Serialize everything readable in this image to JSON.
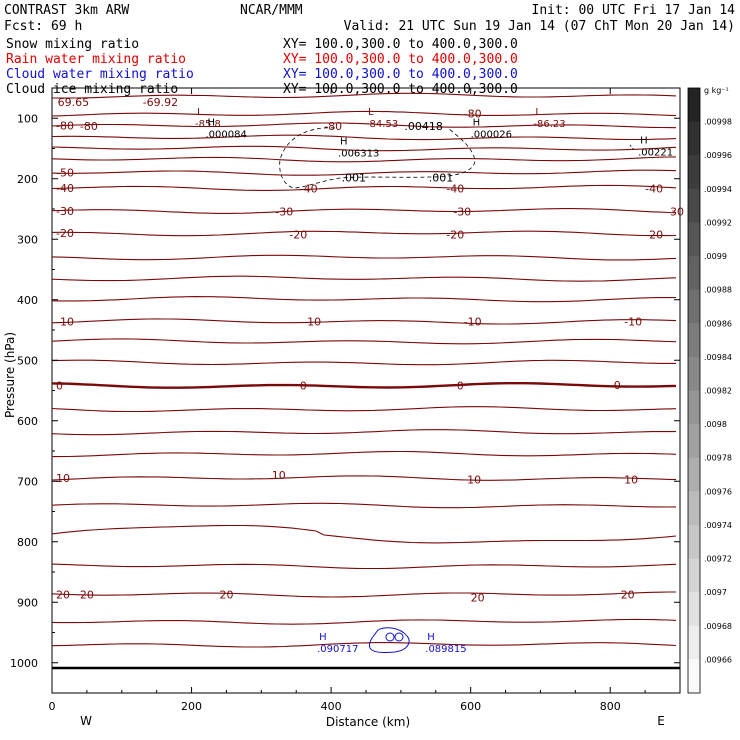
{
  "header": {
    "title_left": "CONTRAST  3km ARW",
    "title_center": "NCAR/MMM",
    "init": "Init: 00 UTC Fri 17 Jan 14",
    "fcst": "Fcst:   69 h",
    "valid": "Valid: 21 UTC Sun 19 Jan 14 (07 ChT Mon 20 Jan 14)"
  },
  "fields": [
    {
      "name": "Snow mixing ratio",
      "xy": "XY= 100.0,300.0 to 400.0,300.0",
      "color": "#000000"
    },
    {
      "name": "Rain water mixing ratio",
      "xy": "XY= 100.0,300.0 to 400.0,300.0",
      "color": "#e00000"
    },
    {
      "name": "Cloud water mixing ratio",
      "xy": "XY= 100.0,300.0 to 400.0,300.0",
      "color": "#1010d0"
    },
    {
      "name": "Cloud ice mixing ratio",
      "xy": "XY= 100.0,300.0 to 400.0,300.0",
      "color": "#000000"
    }
  ],
  "chart_data": {
    "type": "contour",
    "xlabel": "Distance (km)",
    "ylabel": "Pressure (hPa)",
    "xlim": [
      0,
      900
    ],
    "ylim": [
      1050,
      50
    ],
    "xticks": [
      0,
      200,
      400,
      600,
      800
    ],
    "yticks": [
      100,
      200,
      300,
      400,
      500,
      600,
      700,
      800,
      900,
      1000
    ],
    "west_label": "W",
    "east_label": "E",
    "contour_color": "#7a0a0a",
    "isotherms": [
      {
        "p": 63,
        "label": ""
      },
      {
        "p": 93,
        "label": ""
      },
      {
        "p": 112,
        "label": "-80"
      },
      {
        "p": 132,
        "label": ""
      },
      {
        "p": 150,
        "label": ""
      },
      {
        "p": 168,
        "label": ""
      },
      {
        "p": 190,
        "label": "-50"
      },
      {
        "p": 215,
        "label": "-40"
      },
      {
        "p": 253,
        "label": "-30"
      },
      {
        "p": 290,
        "label": "-20"
      },
      {
        "p": 330,
        "label": ""
      },
      {
        "p": 365,
        "label": ""
      },
      {
        "p": 399,
        "label": ""
      },
      {
        "p": 436,
        "label": "-10"
      },
      {
        "p": 469,
        "label": ""
      },
      {
        "p": 504,
        "label": ""
      },
      {
        "p": 542,
        "label": "0",
        "bold": true
      },
      {
        "p": 581,
        "label": ""
      },
      {
        "p": 619,
        "label": ""
      },
      {
        "p": 655,
        "label": ""
      },
      {
        "p": 695,
        "label": "10"
      },
      {
        "p": 740,
        "label": ""
      },
      {
        "p": 790,
        "label": ""
      },
      {
        "p": 840,
        "label": ""
      },
      {
        "p": 887,
        "label": "20"
      },
      {
        "p": 932,
        "label": ""
      },
      {
        "p": 970,
        "label": ""
      }
    ],
    "extrema": [
      {
        "kind": "L",
        "x": 225,
        "p": 108,
        "value": "-85.8",
        "color": "#7a0a0a"
      },
      {
        "kind": "L",
        "x": 470,
        "p": 108,
        "value": "-84.53",
        "color": "#7a0a0a"
      },
      {
        "kind": "L",
        "x": 710,
        "p": 108,
        "value": "-86.23",
        "color": "#7a0a0a"
      },
      {
        "kind": "H",
        "x": 240,
        "p": 125,
        "value": ".000084",
        "color": "#000000"
      },
      {
        "kind": "H",
        "x": 430,
        "p": 157,
        "value": ".006313",
        "color": "#000000"
      },
      {
        "kind": "H",
        "x": 620,
        "p": 125,
        "value": ".000026",
        "color": "#000000"
      },
      {
        "kind": "H",
        "x": 860,
        "p": 155,
        "value": ".00221",
        "color": "#000000"
      },
      {
        "kind": "H",
        "x": 400,
        "p": 976,
        "value": ".090717",
        "color": "#1010d0"
      },
      {
        "kind": "H",
        "x": 555,
        "p": 976,
        "value": ".089815",
        "color": "#1010d0"
      }
    ],
    "annotations": [
      {
        "text": "69.65",
        "x": 8,
        "p": 73
      },
      {
        "text": "-69.92",
        "x": 130,
        "p": 73
      },
      {
        "text": "-80",
        "x": 40,
        "p": 113
      },
      {
        "text": "-80",
        "x": 390,
        "p": 113
      },
      {
        "text": "-80",
        "x": 590,
        "p": 92
      },
      {
        "text": ".00418",
        "x": 505,
        "p": 113
      },
      {
        "text": ".001",
        "x": 415,
        "p": 198
      },
      {
        "text": ".001",
        "x": 540,
        "p": 198
      },
      {
        "text": "-40",
        "x": 355,
        "p": 216
      },
      {
        "text": "-40",
        "x": 565,
        "p": 216
      },
      {
        "text": "-40",
        "x": 850,
        "p": 216
      },
      {
        "text": "-30",
        "x": 320,
        "p": 254
      },
      {
        "text": "-30",
        "x": 575,
        "p": 254
      },
      {
        "text": "-30",
        "x": 880,
        "p": 254
      },
      {
        "text": "-20",
        "x": 340,
        "p": 292
      },
      {
        "text": "-20",
        "x": 565,
        "p": 292
      },
      {
        "text": "-20",
        "x": 850,
        "p": 292
      },
      {
        "text": "-10",
        "x": 360,
        "p": 436
      },
      {
        "text": "-10",
        "x": 590,
        "p": 436
      },
      {
        "text": "-10",
        "x": 820,
        "p": 436
      },
      {
        "text": "0",
        "x": 355,
        "p": 542
      },
      {
        "text": "0",
        "x": 580,
        "p": 542
      },
      {
        "text": "0",
        "x": 805,
        "p": 541
      },
      {
        "text": "10",
        "x": 315,
        "p": 690
      },
      {
        "text": "10",
        "x": 595,
        "p": 697
      },
      {
        "text": "10",
        "x": 820,
        "p": 697
      },
      {
        "text": "20",
        "x": 40,
        "p": 887
      },
      {
        "text": "20",
        "x": 240,
        "p": 887
      },
      {
        "text": "20",
        "x": 600,
        "p": 892
      },
      {
        "text": "20",
        "x": 815,
        "p": 887
      }
    ],
    "colorbar": {
      "unit": "g kg⁻¹",
      "ticks": [
        ".00998",
        ".00996",
        ".00994",
        ".00992",
        ".0099",
        ".00988",
        ".00986",
        ".00984",
        ".00982",
        ".0098",
        ".00978",
        ".00976",
        ".00974",
        ".00972",
        ".0097",
        ".00968",
        ".00966"
      ]
    }
  }
}
